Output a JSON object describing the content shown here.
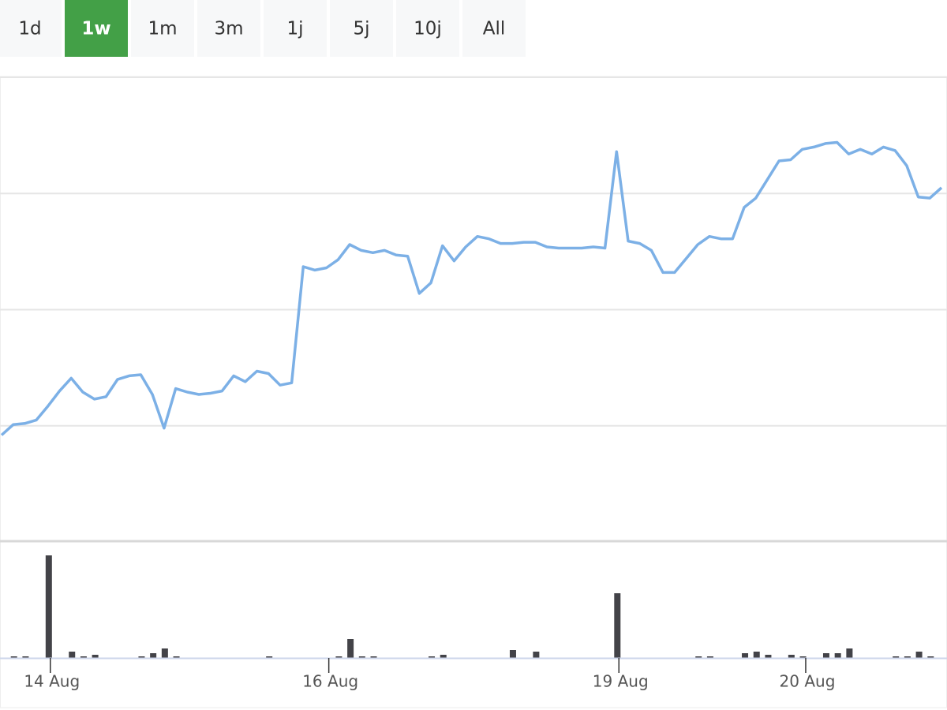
{
  "range_selector": {
    "buttons": [
      "1d",
      "1w",
      "1m",
      "3m",
      "1j",
      "5j",
      "10j",
      "All"
    ],
    "selected": 1,
    "selected_color": "#43a047"
  },
  "chart_data": {
    "type": "line",
    "x": [
      0,
      1,
      2,
      3,
      4,
      5,
      6,
      7,
      8,
      9,
      10,
      11,
      12,
      13,
      14,
      15,
      16,
      17,
      18,
      19,
      20,
      21,
      22,
      23,
      24,
      25,
      26,
      27,
      28,
      29,
      30,
      31,
      32,
      33,
      34,
      35,
      36,
      37,
      38,
      39,
      40,
      41,
      42,
      43,
      44,
      45,
      46,
      47,
      48,
      49,
      50,
      51,
      52,
      53,
      54,
      55,
      56,
      57,
      58,
      59,
      60,
      61,
      62,
      63,
      64,
      65,
      66,
      67,
      68,
      69,
      70,
      71,
      72,
      73,
      74,
      75,
      76,
      77,
      78,
      79,
      80,
      81
    ],
    "values": [
      0.92,
      1.01,
      1.02,
      1.05,
      1.17,
      1.3,
      1.41,
      1.29,
      1.23,
      1.25,
      1.4,
      1.43,
      1.44,
      1.27,
      0.98,
      1.32,
      1.29,
      1.27,
      1.28,
      1.3,
      1.43,
      1.38,
      1.47,
      1.45,
      1.35,
      1.37,
      2.37,
      2.34,
      2.36,
      2.43,
      2.56,
      2.51,
      2.49,
      2.51,
      2.47,
      2.46,
      2.14,
      2.23,
      2.55,
      2.42,
      2.54,
      2.63,
      2.61,
      2.57,
      2.57,
      2.58,
      2.58,
      2.54,
      2.53,
      2.53,
      2.53,
      2.54,
      2.53,
      3.36,
      2.59,
      2.57,
      2.51,
      2.32,
      2.32,
      2.44,
      2.56,
      2.63,
      2.61,
      2.61,
      2.88,
      2.96,
      3.12,
      3.28,
      3.29,
      3.38,
      3.4,
      3.43,
      3.44,
      3.34,
      3.38,
      3.34,
      3.4,
      3.37,
      3.24,
      2.97,
      2.96,
      3.05
    ],
    "color": "#7cb0e6",
    "xlim": [
      0,
      81
    ],
    "xticks": [
      {
        "value": 4.2,
        "label": "14 Aug"
      },
      {
        "value": 28.2,
        "label": "16 Aug"
      },
      {
        "value": 53.2,
        "label": "19 Aug"
      },
      {
        "value": 69.3,
        "label": "20 Aug"
      }
    ],
    "ylim": [
      0,
      4
    ],
    "yticks": [
      1,
      2,
      3,
      4
    ],
    "grid": true,
    "volume": {
      "values": [
        0,
        2,
        2,
        0,
        130,
        0,
        8,
        2,
        4,
        0,
        0,
        0,
        2,
        6,
        12,
        2,
        0,
        0,
        0,
        0,
        0,
        0,
        0,
        2,
        0,
        0,
        0,
        0,
        0,
        2,
        24,
        2,
        2,
        0,
        0,
        0,
        0,
        2,
        4,
        0,
        0,
        0,
        0,
        0,
        10,
        0,
        8,
        0,
        0,
        0,
        0,
        0,
        0,
        82,
        0,
        0,
        0,
        0,
        0,
        0,
        2,
        2,
        0,
        0,
        6,
        8,
        4,
        0,
        4,
        2,
        0,
        6,
        6,
        12,
        0,
        0,
        0,
        2,
        2,
        8,
        2,
        0
      ],
      "color": "#434348",
      "ylim": [
        0,
        144
      ]
    }
  }
}
